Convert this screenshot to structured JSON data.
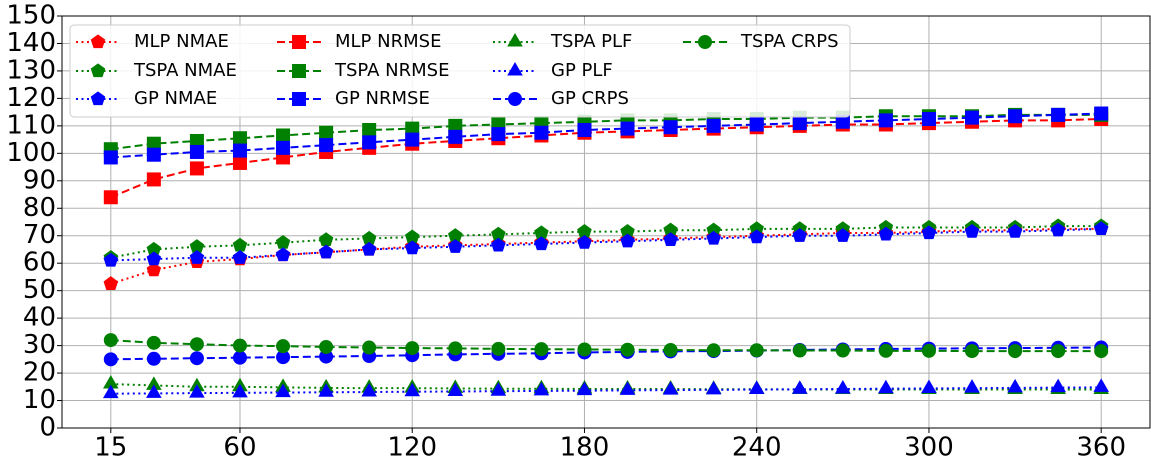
{
  "chart_data": {
    "type": "line",
    "x": [
      15,
      30,
      45,
      60,
      75,
      90,
      105,
      120,
      135,
      150,
      165,
      180,
      195,
      210,
      225,
      240,
      255,
      270,
      285,
      300,
      315,
      330,
      345,
      360
    ],
    "xlim": [
      -2,
      377
    ],
    "xticks": [
      15,
      60,
      120,
      180,
      240,
      300,
      360
    ],
    "ylim": [
      0,
      150
    ],
    "yticks": [
      0,
      10,
      20,
      30,
      40,
      50,
      60,
      70,
      80,
      90,
      100,
      110,
      120,
      130,
      140,
      150
    ],
    "grid": true,
    "legend_position": "upper left",
    "series": [
      {
        "name": "MLP NMAE",
        "color": "#ff0000",
        "marker": "pentagon",
        "linestyle": "dotted",
        "values": [
          52.5,
          57.5,
          60.5,
          61.5,
          63,
          64,
          65,
          66,
          66.5,
          67,
          67.5,
          68,
          68.5,
          69,
          69.5,
          70,
          70.5,
          71,
          71,
          71.5,
          72,
          72,
          72.5,
          72.5
        ]
      },
      {
        "name": "TSPA NMAE",
        "color": "#008000",
        "marker": "pentagon",
        "linestyle": "dotted",
        "values": [
          62,
          65,
          66,
          66.5,
          67.5,
          68.5,
          69,
          69.5,
          70,
          70.5,
          71,
          71.5,
          71.5,
          72,
          72,
          72.5,
          72.5,
          72.5,
          73,
          73,
          73,
          73,
          73.5,
          73.5
        ]
      },
      {
        "name": "GP NMAE",
        "color": "#0000ff",
        "marker": "pentagon",
        "linestyle": "dotted",
        "values": [
          61,
          61.5,
          62,
          62,
          63,
          64,
          65,
          65.5,
          66,
          66.5,
          67,
          67.5,
          68,
          68.5,
          69,
          69.5,
          70,
          70,
          70.5,
          71,
          71.5,
          71.5,
          72,
          72.5
        ]
      },
      {
        "name": "MLP NRMSE",
        "color": "#ff0000",
        "marker": "square",
        "linestyle": "dashed",
        "values": [
          84,
          90.5,
          94.5,
          96.5,
          98.5,
          100.5,
          102,
          103.5,
          104.5,
          105.5,
          106.5,
          107.5,
          108,
          108.5,
          109,
          109.5,
          110,
          110.5,
          110.5,
          111,
          111.5,
          112,
          112,
          112.5
        ]
      },
      {
        "name": "TSPA NRMSE",
        "color": "#008000",
        "marker": "square",
        "linestyle": "dashed",
        "values": [
          101.5,
          103.5,
          104.5,
          105.5,
          106.5,
          107.5,
          108.5,
          109,
          110,
          110.5,
          111,
          111.5,
          112,
          112,
          112.5,
          112.5,
          113,
          113,
          113.5,
          113.5,
          113.5,
          114,
          114,
          114
        ]
      },
      {
        "name": "GP NRMSE",
        "color": "#0000ff",
        "marker": "square",
        "linestyle": "dashed",
        "values": [
          98.5,
          99.5,
          100.5,
          101,
          102,
          103,
          104,
          105,
          106,
          107,
          107.5,
          108.5,
          109,
          109.5,
          110,
          110.5,
          111,
          111.5,
          112,
          112.5,
          113,
          113.5,
          114,
          114.5
        ]
      },
      {
        "name": "TSPA PLF",
        "color": "#008000",
        "marker": "triangle",
        "linestyle": "dotted",
        "values": [
          16,
          15.5,
          15,
          15,
          14.8,
          14.6,
          14.5,
          14.5,
          14.4,
          14.3,
          14.3,
          14.2,
          14.2,
          14.2,
          14.1,
          14.1,
          14,
          14,
          14,
          14,
          14,
          14,
          14,
          14
        ]
      },
      {
        "name": "GP PLF",
        "color": "#0000ff",
        "marker": "triangle",
        "linestyle": "dotted",
        "values": [
          12.5,
          12.6,
          12.7,
          12.8,
          12.9,
          13,
          13.1,
          13.2,
          13.3,
          13.4,
          13.5,
          13.6,
          13.7,
          13.8,
          13.9,
          14,
          14.1,
          14.2,
          14.3,
          14.4,
          14.5,
          14.6,
          14.7,
          14.8
        ]
      },
      {
        "name": "GP CRPS",
        "color": "#0000ff",
        "marker": "circle",
        "linestyle": "dashed",
        "values": [
          25,
          25.2,
          25.4,
          25.6,
          25.8,
          26,
          26.2,
          26.5,
          26.8,
          27,
          27.2,
          27.5,
          27.7,
          27.9,
          28,
          28.2,
          28.4,
          28.6,
          28.8,
          28.9,
          29,
          29.1,
          29.2,
          29.3
        ]
      },
      {
        "name": "TSPA CRPS",
        "color": "#008000",
        "marker": "circle",
        "linestyle": "dashed",
        "values": [
          32,
          31,
          30.5,
          30,
          29.8,
          29.5,
          29.3,
          29.1,
          29,
          28.8,
          28.7,
          28.6,
          28.5,
          28.4,
          28.3,
          28.3,
          28.2,
          28.2,
          28.1,
          28.1,
          28,
          28,
          28,
          28
        ]
      }
    ]
  }
}
